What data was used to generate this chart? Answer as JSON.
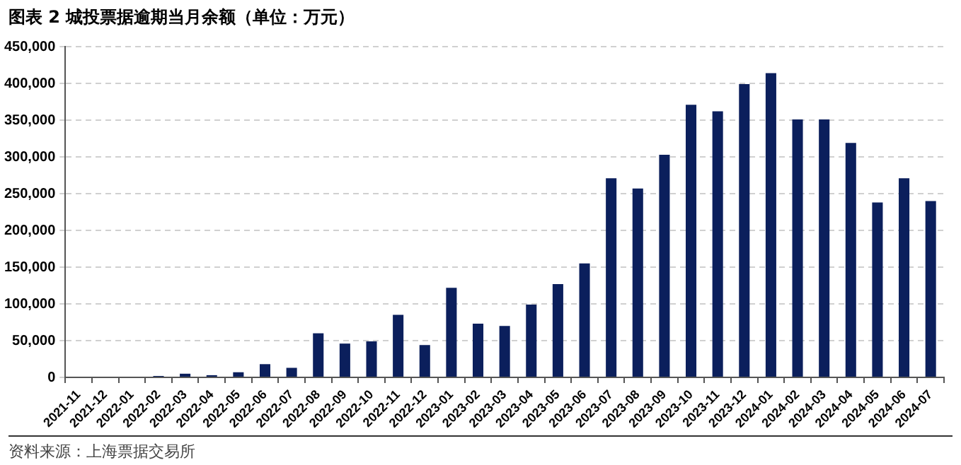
{
  "chart_data": {
    "type": "bar",
    "title": "图表 2  城投票据逾期当月余额（单位：万元）",
    "categories": [
      "2021-11",
      "2021-12",
      "2022-01",
      "2022-02",
      "2022-03",
      "2022-04",
      "2022-05",
      "2022-06",
      "2022-07",
      "2022-08",
      "2022-09",
      "2022-10",
      "2022-11",
      "2022-12",
      "2023-01",
      "2023-02",
      "2023-03",
      "2023-04",
      "2023-05",
      "2023-06",
      "2023-07",
      "2023-08",
      "2023-09",
      "2023-10",
      "2023-11",
      "2023-12",
      "2024-01",
      "2024-02",
      "2024-03",
      "2024-04",
      "2024-05",
      "2024-06",
      "2024-07"
    ],
    "values": [
      0,
      0,
      0,
      2000,
      5000,
      3000,
      7000,
      18000,
      13000,
      60000,
      46000,
      49000,
      85000,
      44000,
      122000,
      73000,
      70000,
      99000,
      127000,
      155000,
      271000,
      257000,
      303000,
      371000,
      362000,
      399000,
      414000,
      351000,
      351000,
      319000,
      238000,
      271000,
      240000
    ],
    "color": "#0b1f5c",
    "ylim": [
      0,
      450000
    ],
    "yticks": [
      {
        "value": 0,
        "label": "0"
      },
      {
        "value": 50000,
        "label": "50,000"
      },
      {
        "value": 100000,
        "label": "100,000"
      },
      {
        "value": 150000,
        "label": "150,000"
      },
      {
        "value": 200000,
        "label": "200,000"
      },
      {
        "value": 250000,
        "label": "250,000"
      },
      {
        "value": 300000,
        "label": "300,000"
      },
      {
        "value": 350000,
        "label": "350,000"
      },
      {
        "value": 400000,
        "label": "400,000"
      },
      {
        "value": 450000,
        "label": "450,000"
      }
    ],
    "grid": "y",
    "legend": false,
    "annotations": [
      "资料来源：上海票据交易所"
    ]
  }
}
